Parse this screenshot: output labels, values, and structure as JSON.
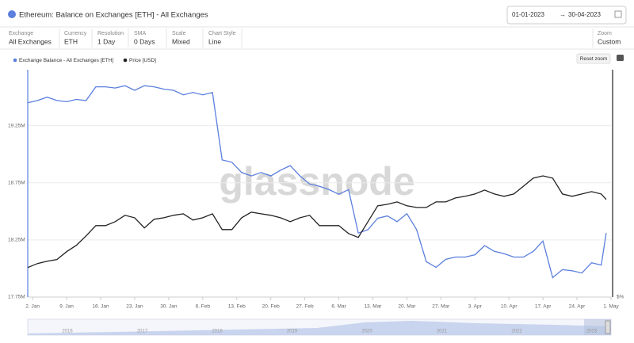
{
  "header": {
    "title": "Ethereum: Balance on Exchanges [ETH] - All Exchanges",
    "date_from": "01-01-2023",
    "date_to": "30-04-2023"
  },
  "controls": [
    {
      "label": "Exchange",
      "value": "All Exchanges"
    },
    {
      "label": "Currency",
      "value": "ETH"
    },
    {
      "label": "Resolution",
      "value": "1 Day"
    },
    {
      "label": "SMA",
      "value": "0 Days"
    },
    {
      "label": "Scale",
      "value": "Mixed"
    },
    {
      "label": "Chart Style",
      "value": "Line"
    },
    {
      "label": "Zoom",
      "value": "Custom"
    }
  ],
  "reset_zoom": "Reset zoom",
  "watermark": "glassnode",
  "chart_data": {
    "type": "line",
    "x": [
      0,
      2,
      4,
      6,
      8,
      10,
      12,
      14,
      16,
      18,
      20,
      22,
      24,
      26,
      28,
      30,
      32,
      34,
      36,
      38,
      40,
      42,
      44,
      46,
      48,
      50,
      52,
      54,
      56,
      58,
      60,
      62,
      64,
      66,
      68,
      70,
      72,
      74,
      76,
      78,
      80,
      82,
      84,
      86,
      88,
      90,
      92,
      94,
      96,
      98,
      100,
      102,
      104,
      106,
      108,
      110,
      112,
      114,
      116,
      118,
      119
    ],
    "xlim": [
      0,
      120
    ],
    "xticks": [
      {
        "value": 1,
        "label": "2. Jan"
      },
      {
        "value": 8,
        "label": "9. Jan"
      },
      {
        "value": 15,
        "label": "16. Jan"
      },
      {
        "value": 22,
        "label": "23. Jan"
      },
      {
        "value": 29,
        "label": "30. Jan"
      },
      {
        "value": 36,
        "label": "6. Feb"
      },
      {
        "value": 43,
        "label": "13. Feb"
      },
      {
        "value": 50,
        "label": "20. Feb"
      },
      {
        "value": 57,
        "label": "27. Feb"
      },
      {
        "value": 64,
        "label": "6. Mar"
      },
      {
        "value": 71,
        "label": "13. Mar"
      },
      {
        "value": 78,
        "label": "20. Mar"
      },
      {
        "value": 85,
        "label": "27. Mar"
      },
      {
        "value": 92,
        "label": "3. Apr"
      },
      {
        "value": 99,
        "label": "10. Apr"
      },
      {
        "value": 106,
        "label": "17. Apr"
      },
      {
        "value": 113,
        "label": "24. Apr"
      },
      {
        "value": 120,
        "label": "1. May"
      }
    ],
    "ylim": [
      17.75,
      19.74
    ],
    "yticks": [
      {
        "value": 17.75,
        "label": "17.75M"
      },
      {
        "value": 18.25,
        "label": "18.25M"
      },
      {
        "value": 18.75,
        "label": "18.75M"
      },
      {
        "value": 19.25,
        "label": "19.25M"
      }
    ],
    "y2lim": [
      910,
      3140
    ],
    "y2label": "$%",
    "grid": true,
    "series": [
      {
        "name": "Exchange Balance - All Exchanges [ETH]",
        "color": "#5b7fde",
        "values": [
          19.45,
          19.47,
          19.5,
          19.47,
          19.46,
          19.48,
          19.47,
          19.59,
          19.59,
          19.58,
          19.6,
          19.56,
          19.6,
          19.59,
          19.57,
          19.56,
          19.52,
          19.54,
          19.52,
          19.54,
          18.95,
          18.93,
          18.84,
          18.81,
          18.84,
          18.81,
          18.86,
          18.9,
          18.81,
          18.74,
          18.72,
          18.69,
          18.65,
          18.69,
          18.31,
          18.34,
          18.44,
          18.46,
          18.41,
          18.48,
          18.34,
          18.06,
          18.01,
          18.08,
          18.1,
          18.1,
          18.12,
          18.2,
          18.15,
          18.13,
          18.1,
          18.1,
          18.15,
          18.24,
          17.92,
          17.99,
          17.98,
          17.96,
          18.05,
          18.03,
          18.31
        ]
      },
      {
        "name": "Price [USD]",
        "color": "#222222",
        "axis": "y2",
        "values": [
          1200,
          1239,
          1262,
          1278,
          1355,
          1417,
          1510,
          1611,
          1611,
          1650,
          1712,
          1688,
          1588,
          1673,
          1688,
          1712,
          1727,
          1665,
          1688,
          1727,
          1572,
          1572,
          1688,
          1743,
          1727,
          1712,
          1688,
          1650,
          1688,
          1712,
          1611,
          1611,
          1611,
          1533,
          1495,
          1650,
          1805,
          1820,
          1843,
          1805,
          1789,
          1789,
          1843,
          1843,
          1882,
          1898,
          1921,
          1960,
          1921,
          1898,
          1921,
          1998,
          2076,
          2099,
          2076,
          1921,
          1898,
          1921,
          1944,
          1921,
          1867
        ]
      }
    ]
  },
  "navigator": {
    "years": [
      "2016",
      "2017",
      "2018",
      "2019",
      "2020",
      "2021",
      "2022",
      "2023"
    ]
  }
}
